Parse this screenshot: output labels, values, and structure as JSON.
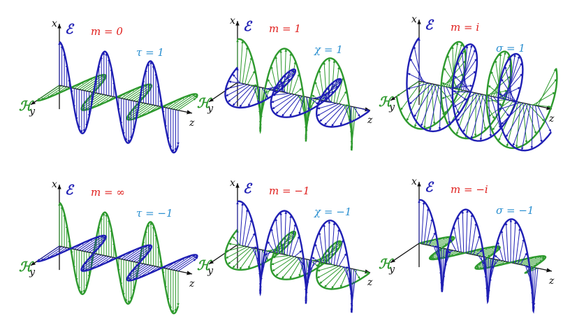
{
  "colors": {
    "electric": "#1f1fb4",
    "magnetic": "#2e9a2e",
    "m_label": "#e0201e",
    "param_label": "#2a8fd0",
    "axis": "#111111"
  },
  "field_labels": {
    "electric": "ℰ",
    "magnetic": "ℋ"
  },
  "axis_labels": {
    "x": "x",
    "y": "y",
    "z": "z"
  },
  "panels": [
    {
      "m": "m = 0",
      "param": "τ = 1",
      "mode": "linear-h"
    },
    {
      "m": "m = 1",
      "param": "χ = 1",
      "mode": "chi-pos"
    },
    {
      "m": "m = i",
      "param": "σ = 1",
      "mode": "sigma-pos"
    },
    {
      "m": "m = ∞",
      "param": "τ = −1",
      "mode": "linear-e"
    },
    {
      "m": "m = −1",
      "param": "χ = −1",
      "mode": "chi-neg"
    },
    {
      "m": "m = −i",
      "param": "σ = −1",
      "mode": "sigma-neg"
    }
  ]
}
